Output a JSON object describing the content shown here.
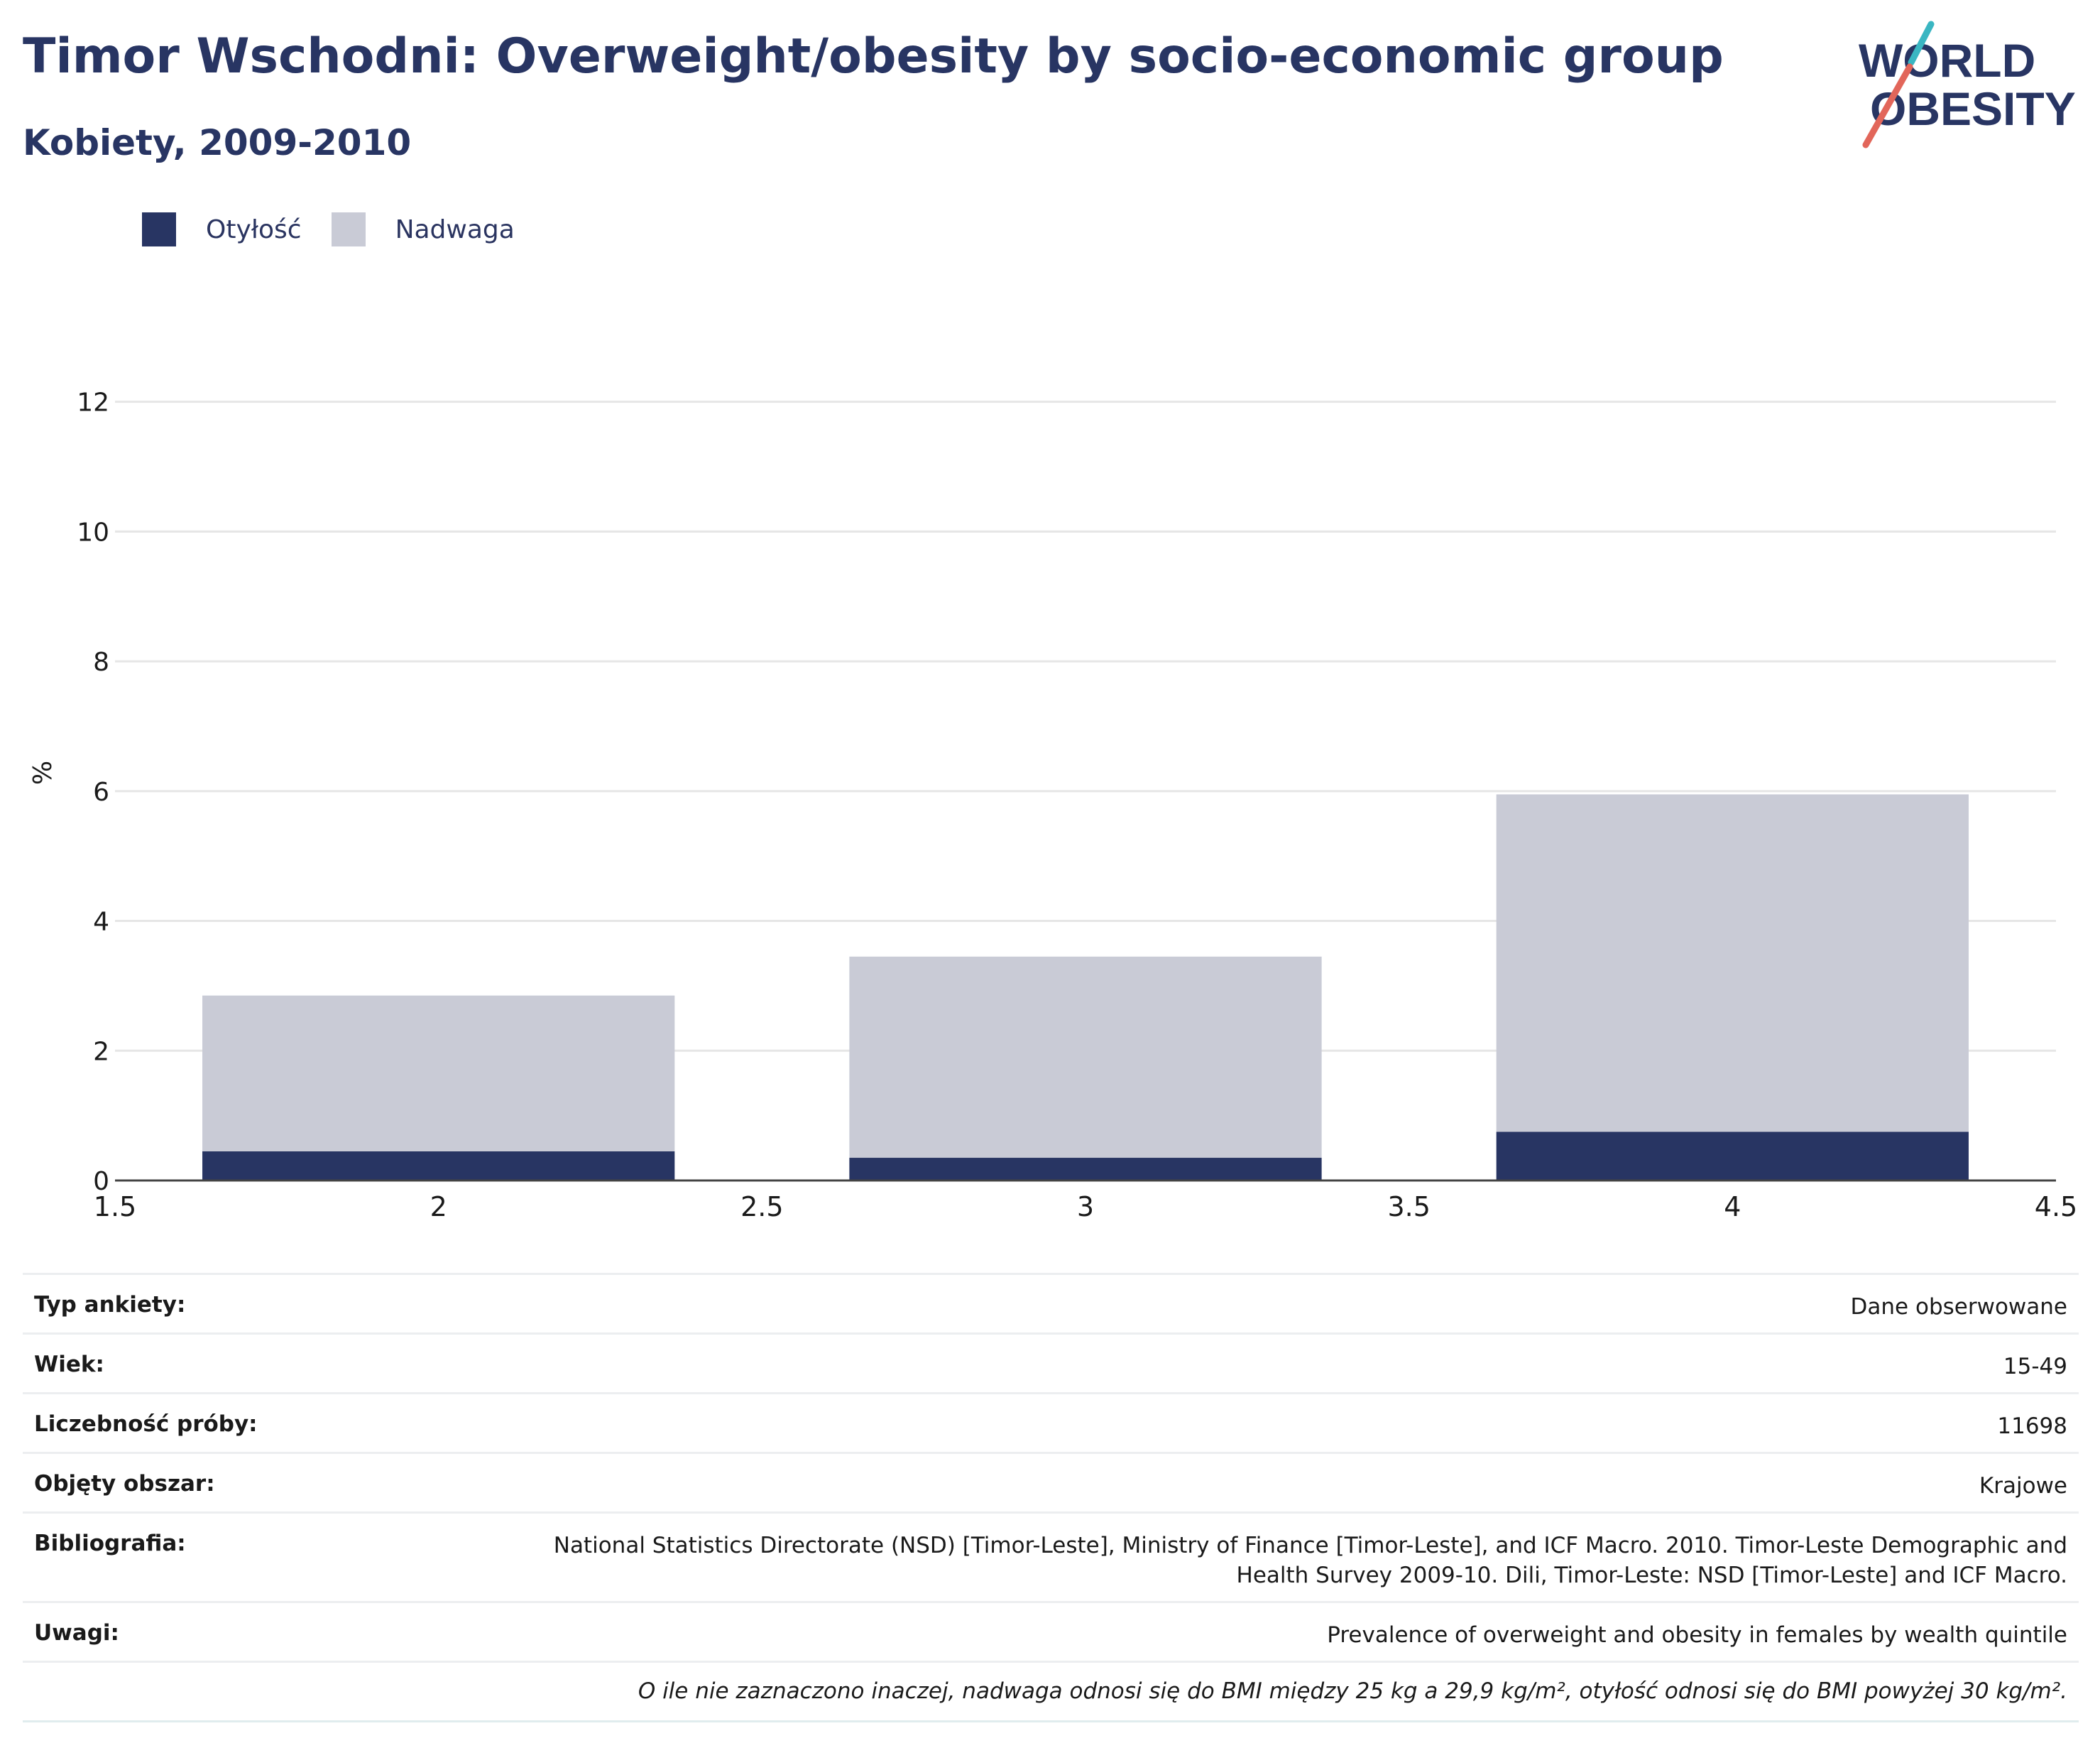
{
  "header": {
    "title": "Timor Wschodni: Overweight/obesity by socio-economic group",
    "subtitle": "Kobiety, 2009-2010"
  },
  "logo": {
    "line1": "WORLD",
    "line2": "OBESITY",
    "colors": {
      "text": "#283563",
      "accent_teal": "#3ab6c2",
      "accent_red": "#e2665a"
    }
  },
  "legend": [
    {
      "label": "Otyłość",
      "color": "#283563"
    },
    {
      "label": "Nadwaga",
      "color": "#c9cbd6"
    }
  ],
  "chart_data": {
    "type": "bar",
    "stacked": true,
    "x": [
      2,
      3,
      4
    ],
    "series": [
      {
        "name": "Otyłość",
        "color": "#283563",
        "values": [
          0.45,
          0.35,
          0.75
        ]
      },
      {
        "name": "Nadwaga",
        "color": "#c9cbd6",
        "values": [
          2.4,
          3.1,
          5.2
        ]
      }
    ],
    "xlim": [
      1.5,
      4.5
    ],
    "ylim": [
      0,
      12.5
    ],
    "xticks": [
      1.5,
      2,
      2.5,
      3,
      3.5,
      4,
      4.5
    ],
    "xtick_labels": [
      "1.5",
      "2",
      "2.5",
      "3",
      "3.5",
      "4",
      "4.5"
    ],
    "yticks": [
      0,
      2,
      4,
      6,
      8,
      10,
      12
    ],
    "ylabel": "%",
    "xlabel": "",
    "grid": true,
    "legend_position": "top-left"
  },
  "info_table": [
    {
      "label": "Typ ankiety:",
      "value": "Dane obserwowane"
    },
    {
      "label": "Wiek:",
      "value": "15-49"
    },
    {
      "label": "Liczebność próby:",
      "value": "11698"
    },
    {
      "label": "Objęty obszar:",
      "value": "Krajowe"
    },
    {
      "label": "Bibliografia:",
      "value": "National Statistics Directorate (NSD) [Timor-Leste], Ministry of Finance [Timor-Leste], and ICF Macro. 2010. Timor-Leste Demographic and Health Survey 2009-10. Dili, Timor-Leste: NSD [Timor-Leste] and ICF Macro."
    },
    {
      "label": "Uwagi:",
      "value": "Prevalence of overweight and obesity in females by wealth quintile"
    }
  ],
  "footnote": "O ile nie zaznaczono inaczej, nadwaga odnosi się do BMI między 25 kg a 29,9 kg/m², otyłość odnosi się do BMI powyżej 30 kg/m²."
}
